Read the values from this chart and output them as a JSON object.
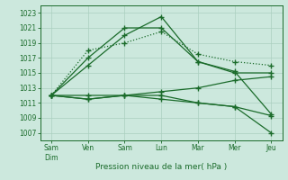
{
  "background_color": "#cce8dd",
  "grid_color": "#aacfbf",
  "line_color": "#1a6b2a",
  "x_labels": [
    "Sam\nDim",
    "Ven",
    "Sam",
    "Lun",
    "Mar",
    "Mer",
    "Jeu"
  ],
  "xlabel": "Pression niveau de la mer( hPa )",
  "ylim": [
    1006,
    1024
  ],
  "yticks": [
    1007,
    1009,
    1011,
    1013,
    1015,
    1017,
    1019,
    1021,
    1023
  ],
  "series": [
    [
      1012,
      1017,
      1021,
      1021,
      1016.5,
      1015,
      1015
    ],
    [
      1012,
      1016,
      1020,
      1022.5,
      1016.5,
      1015.2,
      1009.5
    ],
    [
      1012,
      1018,
      1019,
      1020.5,
      1017.5,
      1016.5,
      1016
    ],
    [
      1012,
      1011.5,
      1012,
      1012,
      1011,
      1010.5,
      1009.3
    ],
    [
      1012,
      1011.5,
      1012,
      1012.5,
      1013,
      1014,
      1014.5
    ],
    [
      1012,
      1012,
      1012,
      1011.5,
      1011,
      1010.5,
      1007
    ]
  ],
  "line_styles": [
    "-",
    "-",
    ":",
    "-",
    "-",
    "-"
  ],
  "markers": [
    "+",
    "+",
    "+",
    "+",
    "+",
    "+"
  ],
  "marker_size": 4,
  "linewidth": 0.9
}
